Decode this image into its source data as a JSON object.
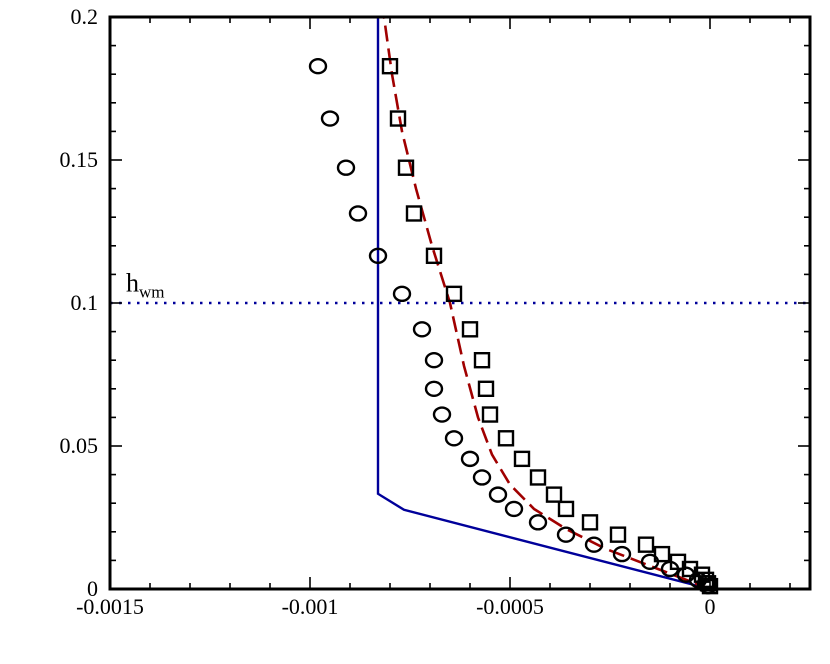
{
  "chart_data": {
    "type": "line",
    "title": "",
    "xlabel": "",
    "ylabel": "",
    "xlim": [
      -0.0015,
      0.00025
    ],
    "ylim": [
      0,
      0.2
    ],
    "x_ticks": [
      -0.0015,
      -0.001,
      -0.0005,
      0
    ],
    "x_tick_labels": [
      "-0.0015",
      "-0.001",
      "-0.0005",
      "0"
    ],
    "y_ticks": [
      0,
      0.05,
      0.1,
      0.15,
      0.2
    ],
    "y_tick_labels": [
      "0",
      "0.05",
      "0.1",
      "0.15",
      "0.2"
    ],
    "grid": false,
    "annotation": {
      "text": "h",
      "subscript": "wm",
      "x": -0.00146,
      "y": 0.104
    },
    "series": [
      {
        "name": "blue-solid",
        "style": "solid-line",
        "color": "#00009a",
        "points": [
          [
            0,
            0
          ],
          [
            -0.000765,
            0.0277
          ],
          [
            -0.00083,
            0.0333
          ],
          [
            -0.00083,
            0.2
          ]
        ]
      },
      {
        "name": "red-dashed",
        "style": "dashed-line",
        "color": "#a00000",
        "points": [
          [
            0,
            0
          ],
          [
            -0.00013,
            0.007
          ],
          [
            -0.00026,
            0.014
          ],
          [
            -0.00036,
            0.021
          ],
          [
            -0.00044,
            0.028
          ],
          [
            -0.0005,
            0.0365
          ],
          [
            -0.000545,
            0.047
          ],
          [
            -0.00058,
            0.06
          ],
          [
            -0.000615,
            0.078
          ],
          [
            -0.00065,
            0.1
          ],
          [
            -0.000695,
            0.12
          ],
          [
            -0.000735,
            0.14
          ],
          [
            -0.00077,
            0.16
          ],
          [
            -0.000795,
            0.18
          ],
          [
            -0.000815,
            0.2
          ]
        ]
      },
      {
        "name": "squares",
        "style": "square-markers",
        "color": "#000000",
        "points": [
          [
            -0.0008,
            0.1828
          ],
          [
            -0.00078,
            0.1645
          ],
          [
            -0.00076,
            0.1473
          ],
          [
            -0.00074,
            0.1313
          ],
          [
            -0.00069,
            0.1165
          ],
          [
            -0.00064,
            0.1032
          ],
          [
            -0.0006,
            0.0908
          ],
          [
            -0.00057,
            0.08
          ],
          [
            -0.00056,
            0.07
          ],
          [
            -0.00055,
            0.061
          ],
          [
            -0.00051,
            0.0527
          ],
          [
            -0.00047,
            0.0455
          ],
          [
            -0.00043,
            0.039
          ],
          [
            -0.00039,
            0.033
          ],
          [
            -0.00036,
            0.028
          ],
          [
            -0.0003,
            0.0233
          ],
          [
            -0.00023,
            0.019
          ],
          [
            -0.00016,
            0.0155
          ],
          [
            -0.00012,
            0.0122
          ],
          [
            -8e-05,
            0.0095
          ],
          [
            -5e-05,
            0.007
          ],
          [
            -2e-05,
            0.005
          ],
          [
            -1e-05,
            0.0032
          ],
          [
            -5e-06,
            0.002
          ],
          [
            0.0,
            0.001
          ]
        ]
      },
      {
        "name": "circles",
        "style": "circle-markers",
        "color": "#000000",
        "points": [
          [
            -0.00098,
            0.1828
          ],
          [
            -0.00095,
            0.1645
          ],
          [
            -0.00091,
            0.1473
          ],
          [
            -0.00088,
            0.1313
          ],
          [
            -0.00083,
            0.1165
          ],
          [
            -0.00077,
            0.1032
          ],
          [
            -0.00072,
            0.0908
          ],
          [
            -0.00069,
            0.08
          ],
          [
            -0.00069,
            0.07
          ],
          [
            -0.00067,
            0.061
          ],
          [
            -0.00064,
            0.0527
          ],
          [
            -0.0006,
            0.0455
          ],
          [
            -0.00057,
            0.039
          ],
          [
            -0.00053,
            0.033
          ],
          [
            -0.00049,
            0.028
          ],
          [
            -0.00043,
            0.0233
          ],
          [
            -0.00036,
            0.019
          ],
          [
            -0.00029,
            0.0155
          ],
          [
            -0.00022,
            0.0122
          ],
          [
            -0.00015,
            0.0095
          ],
          [
            -0.0001,
            0.007
          ],
          [
            -6e-05,
            0.005
          ],
          [
            -3e-05,
            0.0032
          ],
          [
            -1e-05,
            0.002
          ],
          [
            -5e-06,
            0.001
          ]
        ]
      },
      {
        "name": "h_wm-reference",
        "style": "dotted-line",
        "color": "#00009a",
        "points": [
          [
            -0.0015,
            0.1
          ],
          [
            0.00025,
            0.1
          ]
        ]
      }
    ]
  }
}
